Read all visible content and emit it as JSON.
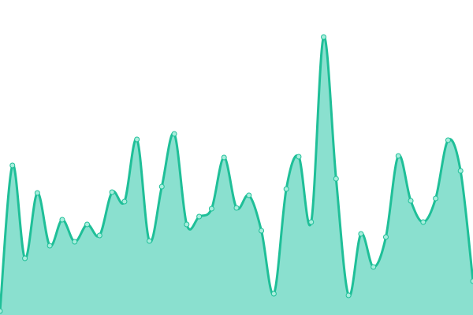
{
  "chart_data": {
    "type": "area",
    "smooth": true,
    "x": [
      0,
      1,
      2,
      3,
      4,
      5,
      6,
      7,
      8,
      9,
      10,
      11,
      12,
      13,
      14,
      15,
      16,
      17,
      18,
      19,
      20,
      21,
      22,
      23,
      24,
      25,
      26,
      27,
      28,
      29,
      30,
      31,
      32,
      33,
      34,
      35,
      36,
      37,
      38
    ],
    "values": [
      5,
      190,
      72,
      155,
      88,
      121,
      93,
      115,
      101,
      156,
      144,
      223,
      94,
      163,
      230,
      115,
      125,
      135,
      200,
      136,
      152,
      107,
      27,
      160,
      201,
      118,
      353,
      173,
      25,
      103,
      61,
      99,
      202,
      145,
      118,
      148,
      222,
      183,
      43
    ],
    "ylim": [
      0,
      400
    ],
    "grid": false,
    "axes_visible": false,
    "colors": {
      "line": "#1fbf98",
      "fill": "#8ae0cf",
      "marker_fill": "#a8eedd",
      "marker_stroke": "#1fbf98"
    }
  }
}
